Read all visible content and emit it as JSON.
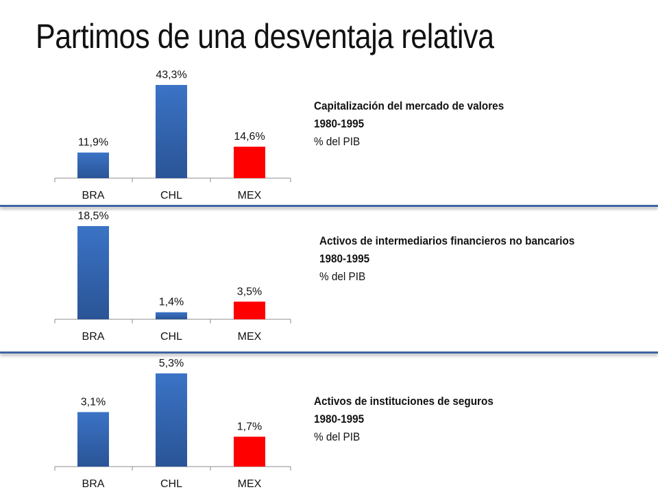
{
  "title": "Partimos de una desventaja relativa",
  "colors": {
    "bar_blue": "#3b73c6",
    "bar_blue_dark": "#2a5496",
    "bar_red": "#ff0000",
    "divider": "#3f63a6"
  },
  "chart_data": [
    {
      "type": "bar",
      "categories": [
        "BRA",
        "CHL",
        "MEX"
      ],
      "values": [
        11.9,
        43.3,
        14.6
      ],
      "value_labels": [
        "11,9%",
        "43,3%",
        "14,6%"
      ],
      "bar_colors": [
        "blue",
        "blue",
        "red"
      ],
      "ylim": [
        0,
        43.3
      ],
      "caption": {
        "line1": "Capitalización del mercado de valores",
        "line2": "1980-1995",
        "line3": "% del PIB"
      }
    },
    {
      "type": "bar",
      "categories": [
        "BRA",
        "CHL",
        "MEX"
      ],
      "values": [
        18.5,
        1.4,
        3.5
      ],
      "value_labels": [
        "18,5%",
        "1,4%",
        "3,5%"
      ],
      "bar_colors": [
        "blue",
        "blue",
        "red"
      ],
      "ylim": [
        0,
        18.5
      ],
      "caption": {
        "line1": "Activos de intermediarios financieros no bancarios",
        "line2": "1980-1995",
        "line3": "% del PIB"
      }
    },
    {
      "type": "bar",
      "categories": [
        "BRA",
        "CHL",
        "MEX"
      ],
      "values": [
        3.1,
        5.3,
        1.7
      ],
      "value_labels": [
        "3,1%",
        "5,3%",
        "1,7%"
      ],
      "bar_colors": [
        "blue",
        "blue",
        "red"
      ],
      "ylim": [
        0,
        5.3
      ],
      "caption": {
        "line1": "Activos de instituciones de seguros",
        "line2": "1980-1995",
        "line3": "% del PIB"
      }
    }
  ]
}
